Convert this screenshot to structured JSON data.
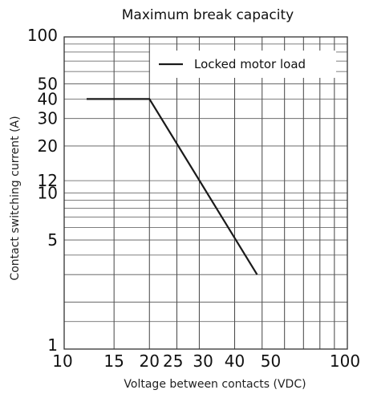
{
  "chart_data": {
    "type": "line",
    "title": "Maximum break capacity",
    "xlabel": "Voltage between contacts (VDC)",
    "ylabel": "Contact switching current (A)",
    "x_scale": "log",
    "y_scale": "log",
    "xlim": [
      10,
      100
    ],
    "ylim": [
      1,
      100
    ],
    "x_tick_labels": [
      {
        "value": 10,
        "label": "10"
      },
      {
        "value": 15,
        "label": "15"
      },
      {
        "value": 20,
        "label": "20"
      },
      {
        "value": 25,
        "label": "25"
      },
      {
        "value": 30,
        "label": "30"
      },
      {
        "value": 40,
        "label": "40"
      },
      {
        "value": 50,
        "label": "50"
      },
      {
        "value": 100,
        "label": "100"
      }
    ],
    "y_tick_labels": [
      {
        "value": 1,
        "label": "1"
      },
      {
        "value": 5,
        "label": "5"
      },
      {
        "value": 10,
        "label": "10"
      },
      {
        "value": 12,
        "label": "12"
      },
      {
        "value": 20,
        "label": "20"
      },
      {
        "value": 30,
        "label": "30"
      },
      {
        "value": 40,
        "label": "40"
      },
      {
        "value": 50,
        "label": "50"
      },
      {
        "value": 100,
        "label": "100"
      }
    ],
    "x_gridlines": [
      10,
      15,
      20,
      25,
      30,
      40,
      50,
      60,
      70,
      80,
      90,
      100
    ],
    "y_gridlines": [
      1,
      1.5,
      2,
      3,
      4,
      5,
      6,
      7,
      8,
      9,
      10,
      12,
      20,
      30,
      40,
      50,
      60,
      70,
      80,
      90,
      100
    ],
    "grid": true,
    "legend_position": "top-right",
    "series": [
      {
        "name": "Locked motor load",
        "color": "#1a1a1a",
        "x": [
          12,
          20,
          48
        ],
        "y": [
          40,
          40,
          3
        ]
      }
    ]
  }
}
